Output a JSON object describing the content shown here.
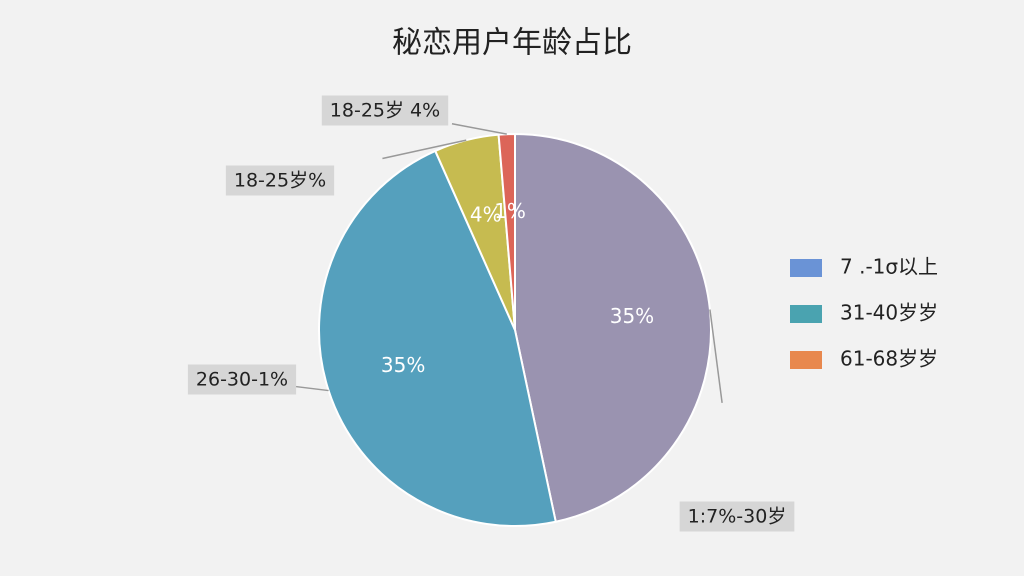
{
  "chart_data": {
    "type": "pie",
    "title": "秘恋用户年龄占比",
    "categories": [
      "1:7%-30岁",
      "26-30-1%",
      "18-25岁%",
      "18-25岁 4%"
    ],
    "values": [
      35,
      35,
      4,
      1
    ],
    "value_labels": [
      "35%",
      "35%",
      "4%",
      "1%"
    ],
    "colors": [
      "#9a93b0",
      "#55a0bd",
      "#c6bb50",
      "#dc6558"
    ],
    "legend": [
      {
        "name": "7 .-1σ以上",
        "color": "#6a93d6"
      },
      {
        "name": "31-40岁岁",
        "color": "#4aa3b0"
      },
      {
        "name": "61-68岁岁",
        "color": "#e8884e"
      }
    ]
  }
}
